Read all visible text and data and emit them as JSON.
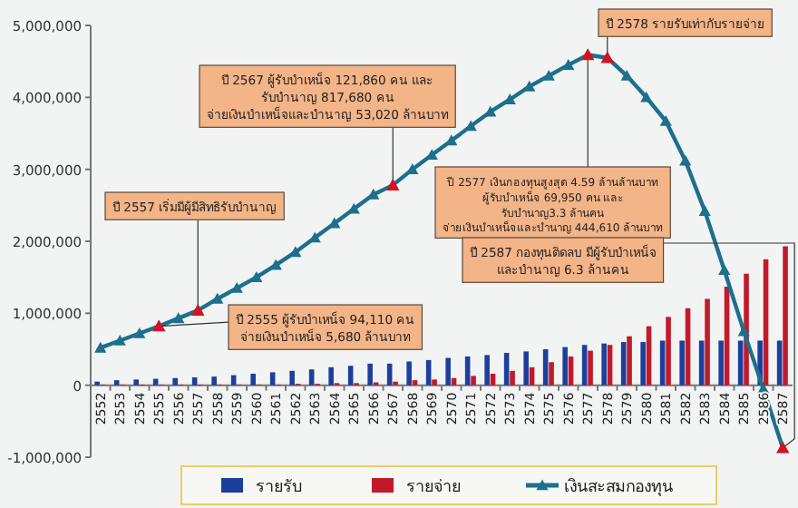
{
  "chart_data": {
    "type": "bar",
    "categories": [
      "2552",
      "2553",
      "2554",
      "2555",
      "2556",
      "2557",
      "2558",
      "2559",
      "2560",
      "2561",
      "2562",
      "2563",
      "2564",
      "2565",
      "2566",
      "2567",
      "2568",
      "2569",
      "2570",
      "2571",
      "2572",
      "2573",
      "2574",
      "2575",
      "2576",
      "2577",
      "2578",
      "2579",
      "2580",
      "2581",
      "2582",
      "2583",
      "2584",
      "2585",
      "2586",
      "2587"
    ],
    "series": [
      {
        "name": "รายรับ",
        "color": "#1c3f9e",
        "values": [
          50000,
          70000,
          80000,
          90000,
          100000,
          110000,
          120000,
          140000,
          160000,
          180000,
          200000,
          220000,
          250000,
          270000,
          300000,
          300000,
          330000,
          350000,
          380000,
          400000,
          420000,
          450000,
          470000,
          500000,
          530000,
          560000,
          580000,
          600000,
          600000,
          620000,
          620000,
          620000,
          620000,
          620000,
          620000,
          620000
        ]
      },
      {
        "name": "รายจ่าย",
        "color": "#c21a2b",
        "values": [
          10000,
          10000,
          10000,
          10000,
          10000,
          10000,
          10000,
          10000,
          10000,
          10000,
          20000,
          20000,
          30000,
          30000,
          40000,
          50000,
          70000,
          80000,
          100000,
          130000,
          160000,
          200000,
          250000,
          320000,
          400000,
          480000,
          560000,
          680000,
          820000,
          950000,
          1070000,
          1200000,
          1370000,
          1550000,
          1750000,
          1930000
        ]
      },
      {
        "name": "เงินสะสมกองทุน",
        "type": "line",
        "color": "#1d6f8e",
        "values": [
          520000,
          620000,
          720000,
          820000,
          930000,
          1040000,
          1200000,
          1350000,
          1500000,
          1670000,
          1850000,
          2050000,
          2250000,
          2450000,
          2650000,
          2780000,
          3000000,
          3200000,
          3400000,
          3600000,
          3800000,
          3970000,
          4150000,
          4300000,
          4450000,
          4590000,
          4550000,
          4300000,
          4000000,
          3670000,
          3120000,
          2420000,
          1600000,
          750000,
          -50000,
          -870000
        ]
      }
    ],
    "marker": "triangle",
    "legend": "bottom",
    "ylim": [
      -1000000,
      5000000
    ],
    "yticks": [
      {
        "value": -1000000,
        "label": "-1,000,000"
      },
      {
        "value": 0,
        "label": "0"
      },
      {
        "value": 1000000,
        "label": "1,000,000"
      },
      {
        "value": 2000000,
        "label": "2,000,000"
      },
      {
        "value": 3000000,
        "label": "3,000,000"
      },
      {
        "value": 4000000,
        "label": "4,000,000"
      },
      {
        "value": 5000000,
        "label": "5,000,000"
      }
    ],
    "annotations": [
      {
        "text": "ปี 2567 ผู้รับบำเหน็จ 121,860 คน และ\nรับบำนาญ 817,680 คน\nจ่ายเงินบำเหน็จและบำนาญ 53,020 ล้านบาท",
        "x": "2567",
        "y": 2780000
      },
      {
        "text": "ปี 2557 เริ่มมีผู้มีสิทธิรับบำนาญ",
        "x": "2557",
        "y": 1040000
      },
      {
        "text": "ปี 2555 ผู้รับบำเหน็จ 94,110 คน\nจ่ายเงินบำเหน็จ 5,680 ล้านบาท",
        "x": "2555",
        "y": 820000
      },
      {
        "text": "ปี 2577 เงินกองทุนสูงสุด 4.59 ล้านล้านบาท\nผู้รับบำเหน็จ 69,950 คน และ\nรับบำนาญ3.3 ล้านคน\nจ่ายเงินบำเหน็จและบำนาญ 444,610 ล้านบาท",
        "x": "2577",
        "y": 4590000
      },
      {
        "text": "ปี 2578 รายรับเท่ากับรายจ่าย",
        "x": "2578",
        "y": 4550000
      },
      {
        "text": "ปี 2587 กองทุนติดลบ มีผู้รับบำเหน็จ\nและบำนาญ 6.3 ล้านคน",
        "x": "2587",
        "y": -870000
      }
    ]
  }
}
